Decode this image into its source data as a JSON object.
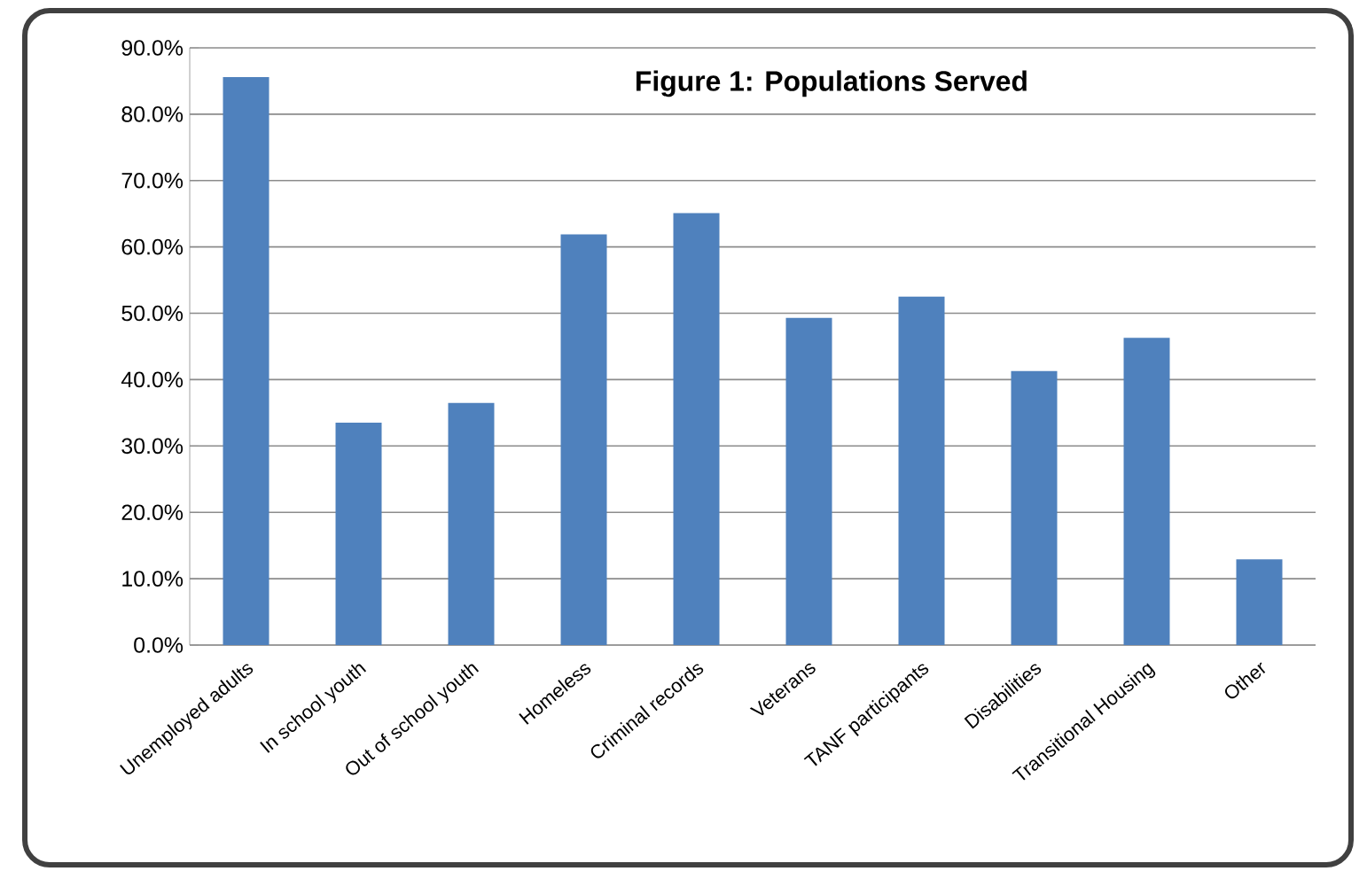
{
  "chart_data": {
    "type": "bar",
    "title": "Figure 1: Populations Served",
    "categories": [
      "Unemployed adults",
      "In school youth",
      "Out of school youth",
      "Homeless",
      "Criminal records",
      "Veterans",
      "TANF participants",
      "Disabilities",
      "Transitional Housing",
      "Other"
    ],
    "values": [
      85.6,
      33.5,
      36.5,
      61.9,
      65.1,
      49.3,
      52.5,
      41.3,
      46.3,
      12.9
    ],
    "color": "#4f81bd",
    "ylim": [
      0,
      90
    ],
    "yticks": [
      {
        "value": 0,
        "label": "0.0%"
      },
      {
        "value": 10,
        "label": "10.0%"
      },
      {
        "value": 20,
        "label": "20.0%"
      },
      {
        "value": 30,
        "label": "30.0%"
      },
      {
        "value": 40,
        "label": "40.0%"
      },
      {
        "value": 50,
        "label": "50.0%"
      },
      {
        "value": 60,
        "label": "60.0%"
      },
      {
        "value": 70,
        "label": "70.0%"
      },
      {
        "value": 80,
        "label": "80.0%"
      },
      {
        "value": 90,
        "label": "90.0%"
      }
    ],
    "grid": "y"
  }
}
